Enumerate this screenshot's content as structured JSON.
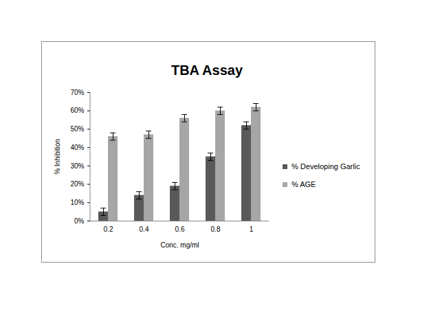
{
  "chart_data": {
    "type": "bar",
    "title": "TBA Assay",
    "x_label": "Conc. mg/ml",
    "y_label": "% Inhibition",
    "categories": [
      "0.2",
      "0.4",
      "0.6",
      "0.8",
      "1"
    ],
    "series": [
      {
        "name": "% Developing Garlic",
        "color": "#595959",
        "values": [
          5,
          14,
          19,
          35,
          52
        ],
        "error": [
          2,
          2,
          2,
          2,
          2
        ]
      },
      {
        "name": "% AGE",
        "color": "#a6a6a6",
        "values": [
          46,
          47,
          56,
          60,
          62
        ],
        "error": [
          2,
          2,
          2,
          2,
          2
        ]
      }
    ],
    "ylim": [
      0,
      70
    ],
    "yticks": [
      {
        "value": 0,
        "label": "0%"
      },
      {
        "value": 10,
        "label": "10%"
      },
      {
        "value": 20,
        "label": "20%"
      },
      {
        "value": 30,
        "label": "30%"
      },
      {
        "value": 40,
        "label": "40%"
      },
      {
        "value": 50,
        "label": "50%"
      },
      {
        "value": 60,
        "label": "60%"
      },
      {
        "value": 70,
        "label": "70%"
      }
    ],
    "grid": false,
    "legend": "right"
  }
}
